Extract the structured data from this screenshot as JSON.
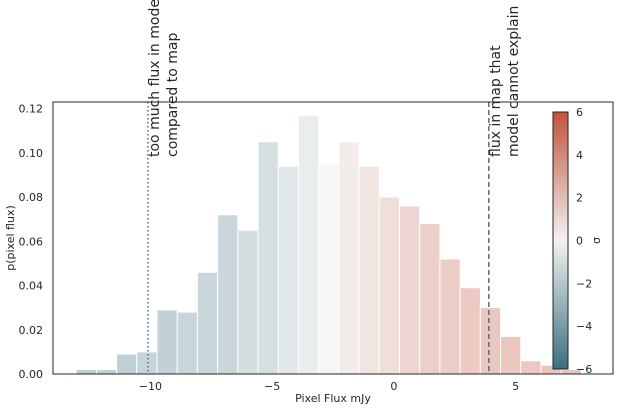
{
  "chart_data": {
    "type": "bar",
    "title": "",
    "xlabel": "Pixel Flux mJy",
    "ylabel": "p(pixel flux)",
    "xlim": [
      -14,
      9
    ],
    "ylim": [
      0,
      0.123
    ],
    "xticks": [
      -10,
      -5,
      0,
      5
    ],
    "yticks": [
      0.0,
      0.02,
      0.04,
      0.06,
      0.08,
      0.1,
      0.12
    ],
    "bin_width": 0.833,
    "bin_left_edges": [
      -13.05,
      -12.22,
      -11.39,
      -10.56,
      -9.73,
      -8.9,
      -8.07,
      -7.24,
      -6.41,
      -5.58,
      -4.75,
      -3.92,
      -3.09,
      -2.26,
      -1.43,
      -0.6,
      0.23,
      1.06,
      1.89,
      2.72,
      3.55,
      4.38,
      5.21,
      6.04,
      6.87
    ],
    "values": [
      0.002,
      0.002,
      0.009,
      0.01,
      0.029,
      0.028,
      0.046,
      0.072,
      0.065,
      0.105,
      0.094,
      0.117,
      0.095,
      0.105,
      0.094,
      0.08,
      0.076,
      0.068,
      0.052,
      0.039,
      0.03,
      0.017,
      0.006,
      0.004,
      0.002
    ],
    "vlines": [
      {
        "x": -10.1,
        "style": "dotted"
      },
      {
        "x": 3.9,
        "style": "dashed"
      }
    ],
    "annotations": [
      {
        "lines": [
          "too much flux in model",
          "compared to map"
        ],
        "x": -10.1
      },
      {
        "lines": [
          "flux in map that",
          "model cannot explain"
        ],
        "x": 3.9
      }
    ],
    "colorbar": {
      "label": "σ",
      "min": -6,
      "max": 6,
      "ticks": [
        -6,
        -4,
        -2,
        0,
        2,
        4,
        6
      ],
      "colors": [
        "#3b6f7f",
        "#f2f2f2",
        "#c1533a"
      ]
    },
    "grid": false
  }
}
